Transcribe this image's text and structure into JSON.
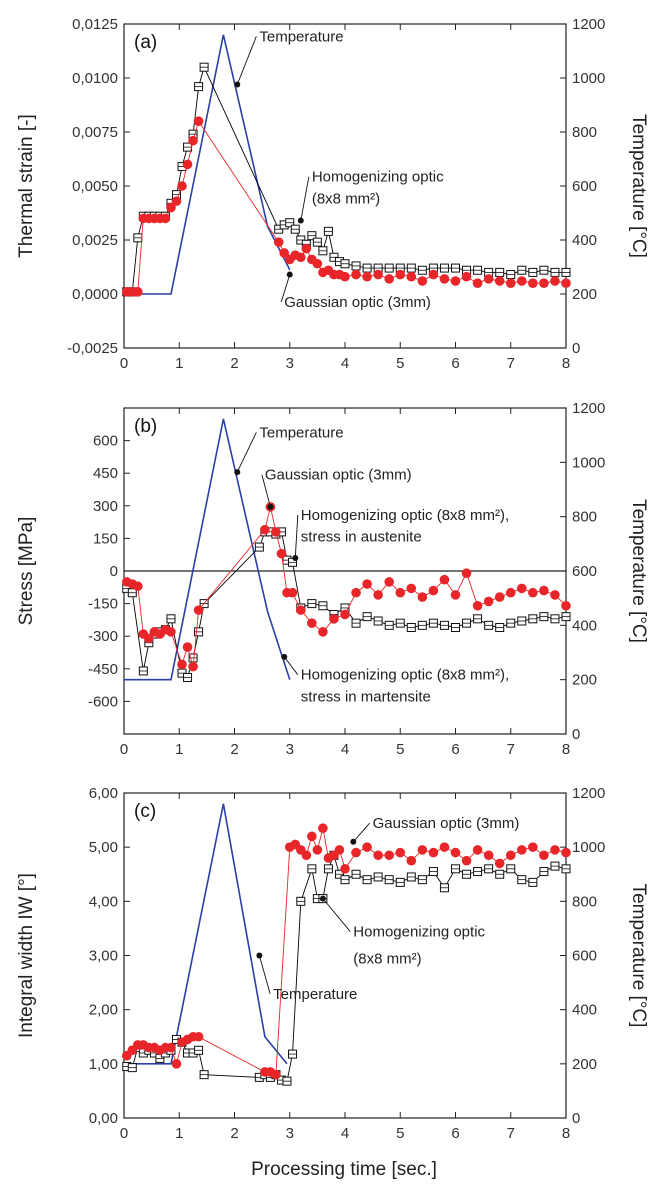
{
  "figure": {
    "xlabel": "Processing time [sec.]"
  },
  "chart_data": [
    {
      "type": "scatter",
      "panel_label": "(a)",
      "ylabel": "Thermal strain [-]",
      "y2label": "Temperature [°C]",
      "xlim": [
        0,
        8
      ],
      "ylim": [
        -0.0025,
        0.0125
      ],
      "y2lim": [
        0,
        1200
      ],
      "xticks": [
        "0",
        "1",
        "2",
        "3",
        "4",
        "5",
        "6",
        "7",
        "8"
      ],
      "yticks": [
        "-0,0025",
        "0,0000",
        "0,0025",
        "0,0050",
        "0,0075",
        "0,0100",
        "0,0125"
      ],
      "y2ticks": [
        "0",
        "200",
        "400",
        "600",
        "800",
        "1000",
        "1200"
      ],
      "annotations": [
        {
          "text": "Temperature",
          "point": [
            2.05,
            0.0097
          ],
          "text_at": [
            2.45,
            0.0117
          ]
        },
        {
          "text": "Homogenizing optic",
          "point": [
            3.2,
            0.0034
          ],
          "text_at": [
            3.4,
            0.0052
          ]
        },
        {
          "text": "(8x8 mm²)",
          "point": null,
          "text_at": [
            3.4,
            0.0042
          ]
        },
        {
          "text": "Gaussian optic (3mm)",
          "point": [
            3.0,
            0.0009
          ],
          "text_at": [
            2.9,
            -0.0006
          ]
        }
      ],
      "series": [
        {
          "marker": "open-square",
          "color": "#000000",
          "x": [
            0.05,
            0.15,
            0.25,
            0.35,
            0.45,
            0.55,
            0.65,
            0.75,
            0.85,
            0.95,
            1.05,
            1.15,
            1.25,
            1.35,
            1.45,
            2.8,
            2.9,
            3.0,
            3.1,
            3.2,
            3.3,
            3.4,
            3.5,
            3.6,
            3.7,
            3.8,
            3.9,
            4.0,
            4.2,
            4.4,
            4.6,
            4.8,
            5.0,
            5.2,
            5.4,
            5.6,
            5.8,
            6.0,
            6.2,
            6.4,
            6.6,
            6.8,
            7.0,
            7.2,
            7.4,
            7.6,
            7.8,
            8.0
          ],
          "y": [
            0.0001,
            0.0001,
            0.0026,
            0.0036,
            0.0036,
            0.0036,
            0.0036,
            0.0036,
            0.0042,
            0.0046,
            0.0059,
            0.0068,
            0.0074,
            0.0096,
            0.0105,
            0.003,
            0.0032,
            0.0033,
            0.003,
            0.0025,
            0.0023,
            0.0027,
            0.0024,
            0.002,
            0.0029,
            0.0017,
            0.0015,
            0.0014,
            0.0013,
            0.0012,
            0.0012,
            0.0012,
            0.0012,
            0.0012,
            0.0011,
            0.0012,
            0.0012,
            0.0012,
            0.0011,
            0.0011,
            0.001,
            0.001,
            0.0009,
            0.0011,
            0.001,
            0.0011,
            0.001,
            0.001
          ]
        },
        {
          "marker": "filled-circle",
          "color": "#e8262a",
          "x": [
            0.05,
            0.15,
            0.25,
            0.35,
            0.45,
            0.55,
            0.65,
            0.75,
            0.85,
            0.95,
            1.05,
            1.15,
            1.25,
            1.35,
            2.8,
            2.9,
            3.0,
            3.1,
            3.2,
            3.3,
            3.4,
            3.5,
            3.6,
            3.7,
            3.8,
            3.9,
            4.0,
            4.2,
            4.4,
            4.6,
            4.8,
            5.0,
            5.2,
            5.4,
            5.6,
            5.8,
            6.0,
            6.2,
            6.4,
            6.6,
            6.8,
            7.0,
            7.2,
            7.4,
            7.6,
            7.8,
            8.0
          ],
          "y": [
            0.0001,
            0.0001,
            0.0001,
            0.0035,
            0.0035,
            0.0035,
            0.0035,
            0.0035,
            0.004,
            0.0043,
            0.005,
            0.006,
            0.0071,
            0.008,
            0.0024,
            0.0019,
            0.0016,
            0.0018,
            0.0017,
            0.0021,
            0.0016,
            0.0014,
            0.001,
            0.0011,
            0.0009,
            0.0009,
            0.0008,
            0.0009,
            0.0008,
            0.0009,
            0.0007,
            0.0009,
            0.0008,
            0.0006,
            0.0009,
            0.0007,
            0.0006,
            0.0008,
            0.0005,
            0.0007,
            0.0006,
            0.0005,
            0.0006,
            0.0005,
            0.0005,
            0.0006,
            0.0005
          ]
        }
      ],
      "temperature": {
        "color": "#2b3fa8",
        "x": [
          0.0,
          0.85,
          1.8,
          2.6,
          3.0
        ],
        "y": [
          200,
          200,
          1160,
          450,
          290
        ]
      }
    },
    {
      "type": "scatter",
      "panel_label": "(b)",
      "ylabel": "Stress [MPa]",
      "y2label": "Temperature [°C]",
      "xlim": [
        0,
        8
      ],
      "ylim": [
        -750,
        750
      ],
      "y2lim": [
        0,
        1200
      ],
      "xticks": [
        "0",
        "1",
        "2",
        "3",
        "4",
        "5",
        "6",
        "7",
        "8"
      ],
      "yticks": [
        "-600",
        "-450",
        "-300",
        "-150",
        "0",
        "150",
        "300",
        "450",
        "600"
      ],
      "yticks_values": [
        -600,
        -450,
        -300,
        -150,
        0,
        150,
        300,
        450,
        600
      ],
      "y2ticks": [
        "0",
        "200",
        "400",
        "600",
        "800",
        "1000",
        "1200"
      ],
      "zero_line": true,
      "annotations": [
        {
          "text": "Temperature",
          "point": [
            2.05,
            455
          ],
          "text_at": [
            2.45,
            615
          ]
        },
        {
          "text": "Gaussian optic (3mm)",
          "point": [
            2.65,
            295
          ],
          "text_at": [
            2.55,
            420
          ]
        },
        {
          "text": "Homogenizing optic (8x8 mm²),",
          "point": [
            3.1,
            60
          ],
          "text_at": [
            3.2,
            235
          ]
        },
        {
          "text": "stress in austenite",
          "point": null,
          "text_at": [
            3.2,
            135
          ]
        },
        {
          "text": "Homogenizing optic (8x8 mm²),",
          "point": [
            2.9,
            -395
          ],
          "text_at": [
            3.2,
            -500
          ]
        },
        {
          "text": "stress in martensite",
          "point": null,
          "text_at": [
            3.2,
            -600
          ]
        }
      ],
      "series": [
        {
          "marker": "open-square",
          "color": "#000000",
          "x": [
            0.05,
            0.15,
            0.35,
            0.45,
            0.55,
            0.65,
            0.75,
            0.85,
            1.05,
            1.15,
            1.25,
            1.35,
            1.45,
            2.45,
            2.55,
            2.65,
            2.75,
            2.85,
            2.95,
            3.05,
            3.2,
            3.4,
            3.6,
            3.8,
            4.0,
            4.2,
            4.4,
            4.6,
            4.8,
            5.0,
            5.2,
            5.4,
            5.6,
            5.8,
            6.0,
            6.2,
            6.4,
            6.6,
            6.8,
            7.0,
            7.2,
            7.4,
            7.6,
            7.8,
            8.0
          ],
          "y": [
            -80,
            -100,
            -460,
            -330,
            -290,
            -280,
            -270,
            -220,
            -470,
            -490,
            -400,
            -280,
            -150,
            110,
            180,
            180,
            170,
            180,
            50,
            40,
            -170,
            -150,
            -160,
            -200,
            -170,
            -240,
            -210,
            -230,
            -250,
            -240,
            -260,
            -250,
            -240,
            -250,
            -260,
            -240,
            -220,
            -250,
            -260,
            -240,
            -230,
            -220,
            -210,
            -220,
            -210
          ]
        },
        {
          "marker": "filled-circle",
          "color": "#e8262a",
          "x": [
            0.05,
            0.15,
            0.25,
            0.35,
            0.45,
            0.55,
            0.65,
            0.75,
            0.85,
            1.05,
            1.15,
            1.25,
            1.35,
            2.55,
            2.65,
            2.75,
            2.85,
            2.95,
            3.05,
            3.2,
            3.4,
            3.6,
            3.8,
            4.0,
            4.2,
            4.4,
            4.6,
            4.8,
            5.0,
            5.2,
            5.4,
            5.6,
            5.8,
            6.0,
            6.2,
            6.4,
            6.6,
            6.8,
            7.0,
            7.2,
            7.4,
            7.6,
            7.8,
            8.0
          ],
          "y": [
            -50,
            -60,
            -70,
            -290,
            -310,
            -280,
            -290,
            -270,
            -280,
            -430,
            -350,
            -440,
            -180,
            190,
            295,
            180,
            80,
            -100,
            -100,
            -180,
            -240,
            -280,
            -220,
            -200,
            -100,
            -60,
            -110,
            -50,
            -100,
            -80,
            -120,
            -90,
            -40,
            -110,
            -10,
            -160,
            -140,
            -120,
            -100,
            -80,
            -100,
            -90,
            -110,
            -160
          ]
        }
      ],
      "temperature": {
        "color": "#2b3fa8",
        "x": [
          0.0,
          0.85,
          1.8,
          2.6,
          3.0
        ],
        "y": [
          200,
          200,
          1160,
          450,
          200
        ]
      }
    },
    {
      "type": "scatter",
      "panel_label": "(c)",
      "ylabel": "Integral width IW [°]",
      "y2label": "Temperature [°C]",
      "xlim": [
        0,
        8
      ],
      "ylim": [
        0,
        6
      ],
      "y2lim": [
        0,
        1200
      ],
      "xticks": [
        "0",
        "1",
        "2",
        "3",
        "4",
        "5",
        "6",
        "7",
        "8"
      ],
      "yticks": [
        "0,00",
        "1,00",
        "2,00",
        "3,00",
        "4,00",
        "5,00",
        "6,00"
      ],
      "y2ticks": [
        "0",
        "200",
        "400",
        "600",
        "800",
        "1000",
        "1200"
      ],
      "annotations": [
        {
          "text": "Gaussian optic (3mm)",
          "point": [
            4.15,
            5.1
          ],
          "text_at": [
            4.5,
            5.35
          ]
        },
        {
          "text": "Homogenizing optic",
          "point": [
            3.6,
            4.05
          ],
          "text_at": [
            4.15,
            3.35
          ]
        },
        {
          "text": "(8x8 mm²)",
          "point": null,
          "text_at": [
            4.15,
            2.85
          ]
        },
        {
          "text": "Temperature",
          "point": [
            2.45,
            3.0
          ],
          "text_at": [
            2.7,
            2.2
          ]
        }
      ],
      "series": [
        {
          "marker": "open-square",
          "color": "#000000",
          "x": [
            0.05,
            0.15,
            0.25,
            0.35,
            0.45,
            0.55,
            0.65,
            0.75,
            0.85,
            0.95,
            1.05,
            1.15,
            1.25,
            1.35,
            1.45,
            2.45,
            2.55,
            2.65,
            2.75,
            2.85,
            2.95,
            3.05,
            3.2,
            3.4,
            3.5,
            3.6,
            3.7,
            3.8,
            3.9,
            4.0,
            4.2,
            4.4,
            4.6,
            4.8,
            5.0,
            5.2,
            5.4,
            5.6,
            5.8,
            6.0,
            6.2,
            6.4,
            6.6,
            6.8,
            7.0,
            7.2,
            7.4,
            7.6,
            7.8,
            8.0
          ],
          "y": [
            0.95,
            0.93,
            1.3,
            1.2,
            1.25,
            1.2,
            1.1,
            1.2,
            1.25,
            1.45,
            1.4,
            1.2,
            1.2,
            1.25,
            0.8,
            0.75,
            0.8,
            0.75,
            0.8,
            0.7,
            0.68,
            1.18,
            4.0,
            4.6,
            4.05,
            4.05,
            4.6,
            4.85,
            4.5,
            4.4,
            4.5,
            4.4,
            4.45,
            4.4,
            4.35,
            4.45,
            4.4,
            4.55,
            4.25,
            4.6,
            4.5,
            4.55,
            4.6,
            4.5,
            4.6,
            4.4,
            4.35,
            4.55,
            4.65,
            4.6
          ]
        },
        {
          "marker": "filled-circle",
          "color": "#e8262a",
          "x": [
            0.05,
            0.15,
            0.25,
            0.35,
            0.45,
            0.55,
            0.65,
            0.75,
            0.85,
            0.95,
            1.05,
            1.15,
            1.25,
            1.35,
            2.55,
            2.65,
            2.75,
            3.0,
            3.1,
            3.2,
            3.3,
            3.4,
            3.5,
            3.6,
            3.7,
            3.8,
            3.9,
            4.0,
            4.2,
            4.4,
            4.6,
            4.8,
            5.0,
            5.2,
            5.4,
            5.6,
            5.8,
            6.0,
            6.2,
            6.4,
            6.6,
            6.8,
            7.0,
            7.2,
            7.4,
            7.6,
            7.8,
            8.0
          ],
          "y": [
            1.15,
            1.25,
            1.35,
            1.35,
            1.3,
            1.3,
            1.25,
            1.3,
            1.3,
            1.0,
            1.4,
            1.45,
            1.5,
            1.5,
            0.85,
            0.85,
            0.8,
            5.0,
            5.05,
            4.95,
            4.85,
            5.2,
            4.95,
            5.35,
            4.8,
            4.85,
            4.95,
            4.6,
            4.9,
            5.0,
            4.85,
            4.85,
            4.9,
            4.75,
            4.95,
            4.9,
            5.0,
            4.9,
            4.75,
            4.95,
            4.85,
            4.7,
            4.85,
            4.95,
            5.0,
            4.85,
            4.95,
            4.9
          ]
        }
      ],
      "temperature": {
        "color": "#2b3fa8",
        "x": [
          0.0,
          0.85,
          1.8,
          2.55,
          2.95
        ],
        "y": [
          200,
          200,
          1160,
          300,
          200
        ]
      }
    }
  ]
}
